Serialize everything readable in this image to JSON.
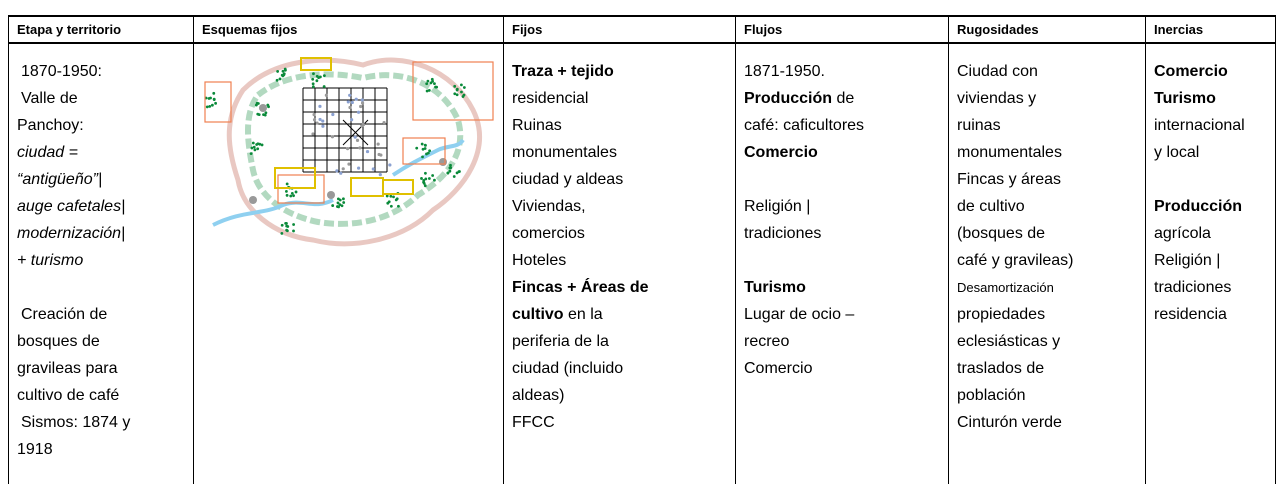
{
  "table": {
    "header": [
      "Etapa y territorio",
      "Esquemas fijos",
      "Fijos",
      "Flujos",
      "Rugosidades",
      "Inercias"
    ],
    "body": [
      [
        "1870-1950:",
        "Valle de",
        "Panchoy:",
        "ciudad =",
        "“antigüeño”|",
        "auge cafetales|",
        "modernización|",
        "+ turismo",
        "Creación de",
        "bosques de",
        "gravileas para",
        "cultivo de café",
        "Sismos: 1874 y",
        "1918"
      ],
      [
        "Traza + tejido",
        "residencial",
        "Ruinas",
        "monumentales",
        "ciudad y aldeas",
        "Viviendas,",
        "comercios",
        "Hoteles",
        "Fincas + Áreas de",
        [
          "cultivo",
          " en la"
        ],
        "periferia de la",
        "ciudad (incluido",
        "aldeas)",
        "FFCC"
      ],
      [
        "1871-1950.",
        [
          "Producción",
          " de"
        ],
        "café: caficultores",
        "Comercio",
        "Religión |",
        "tradiciones",
        "Turismo",
        "Lugar de ocio –",
        "recreo",
        "Comercio"
      ],
      [
        "Ciudad con",
        "viviendas y",
        "ruinas",
        "monumentales",
        "Fincas y áreas",
        "de cultivo",
        "(bosques de",
        "café y gravileas)",
        "Desamortización",
        "propiedades",
        "eclesiásticas y",
        "traslados de",
        "población",
        "Cinturón verde"
      ],
      [
        "Comercio",
        "Turismo",
        "internacional",
        "y local",
        "Producción",
        "agrícola",
        "Religión |",
        "tradiciones",
        "residencia"
      ]
    ]
  }
}
